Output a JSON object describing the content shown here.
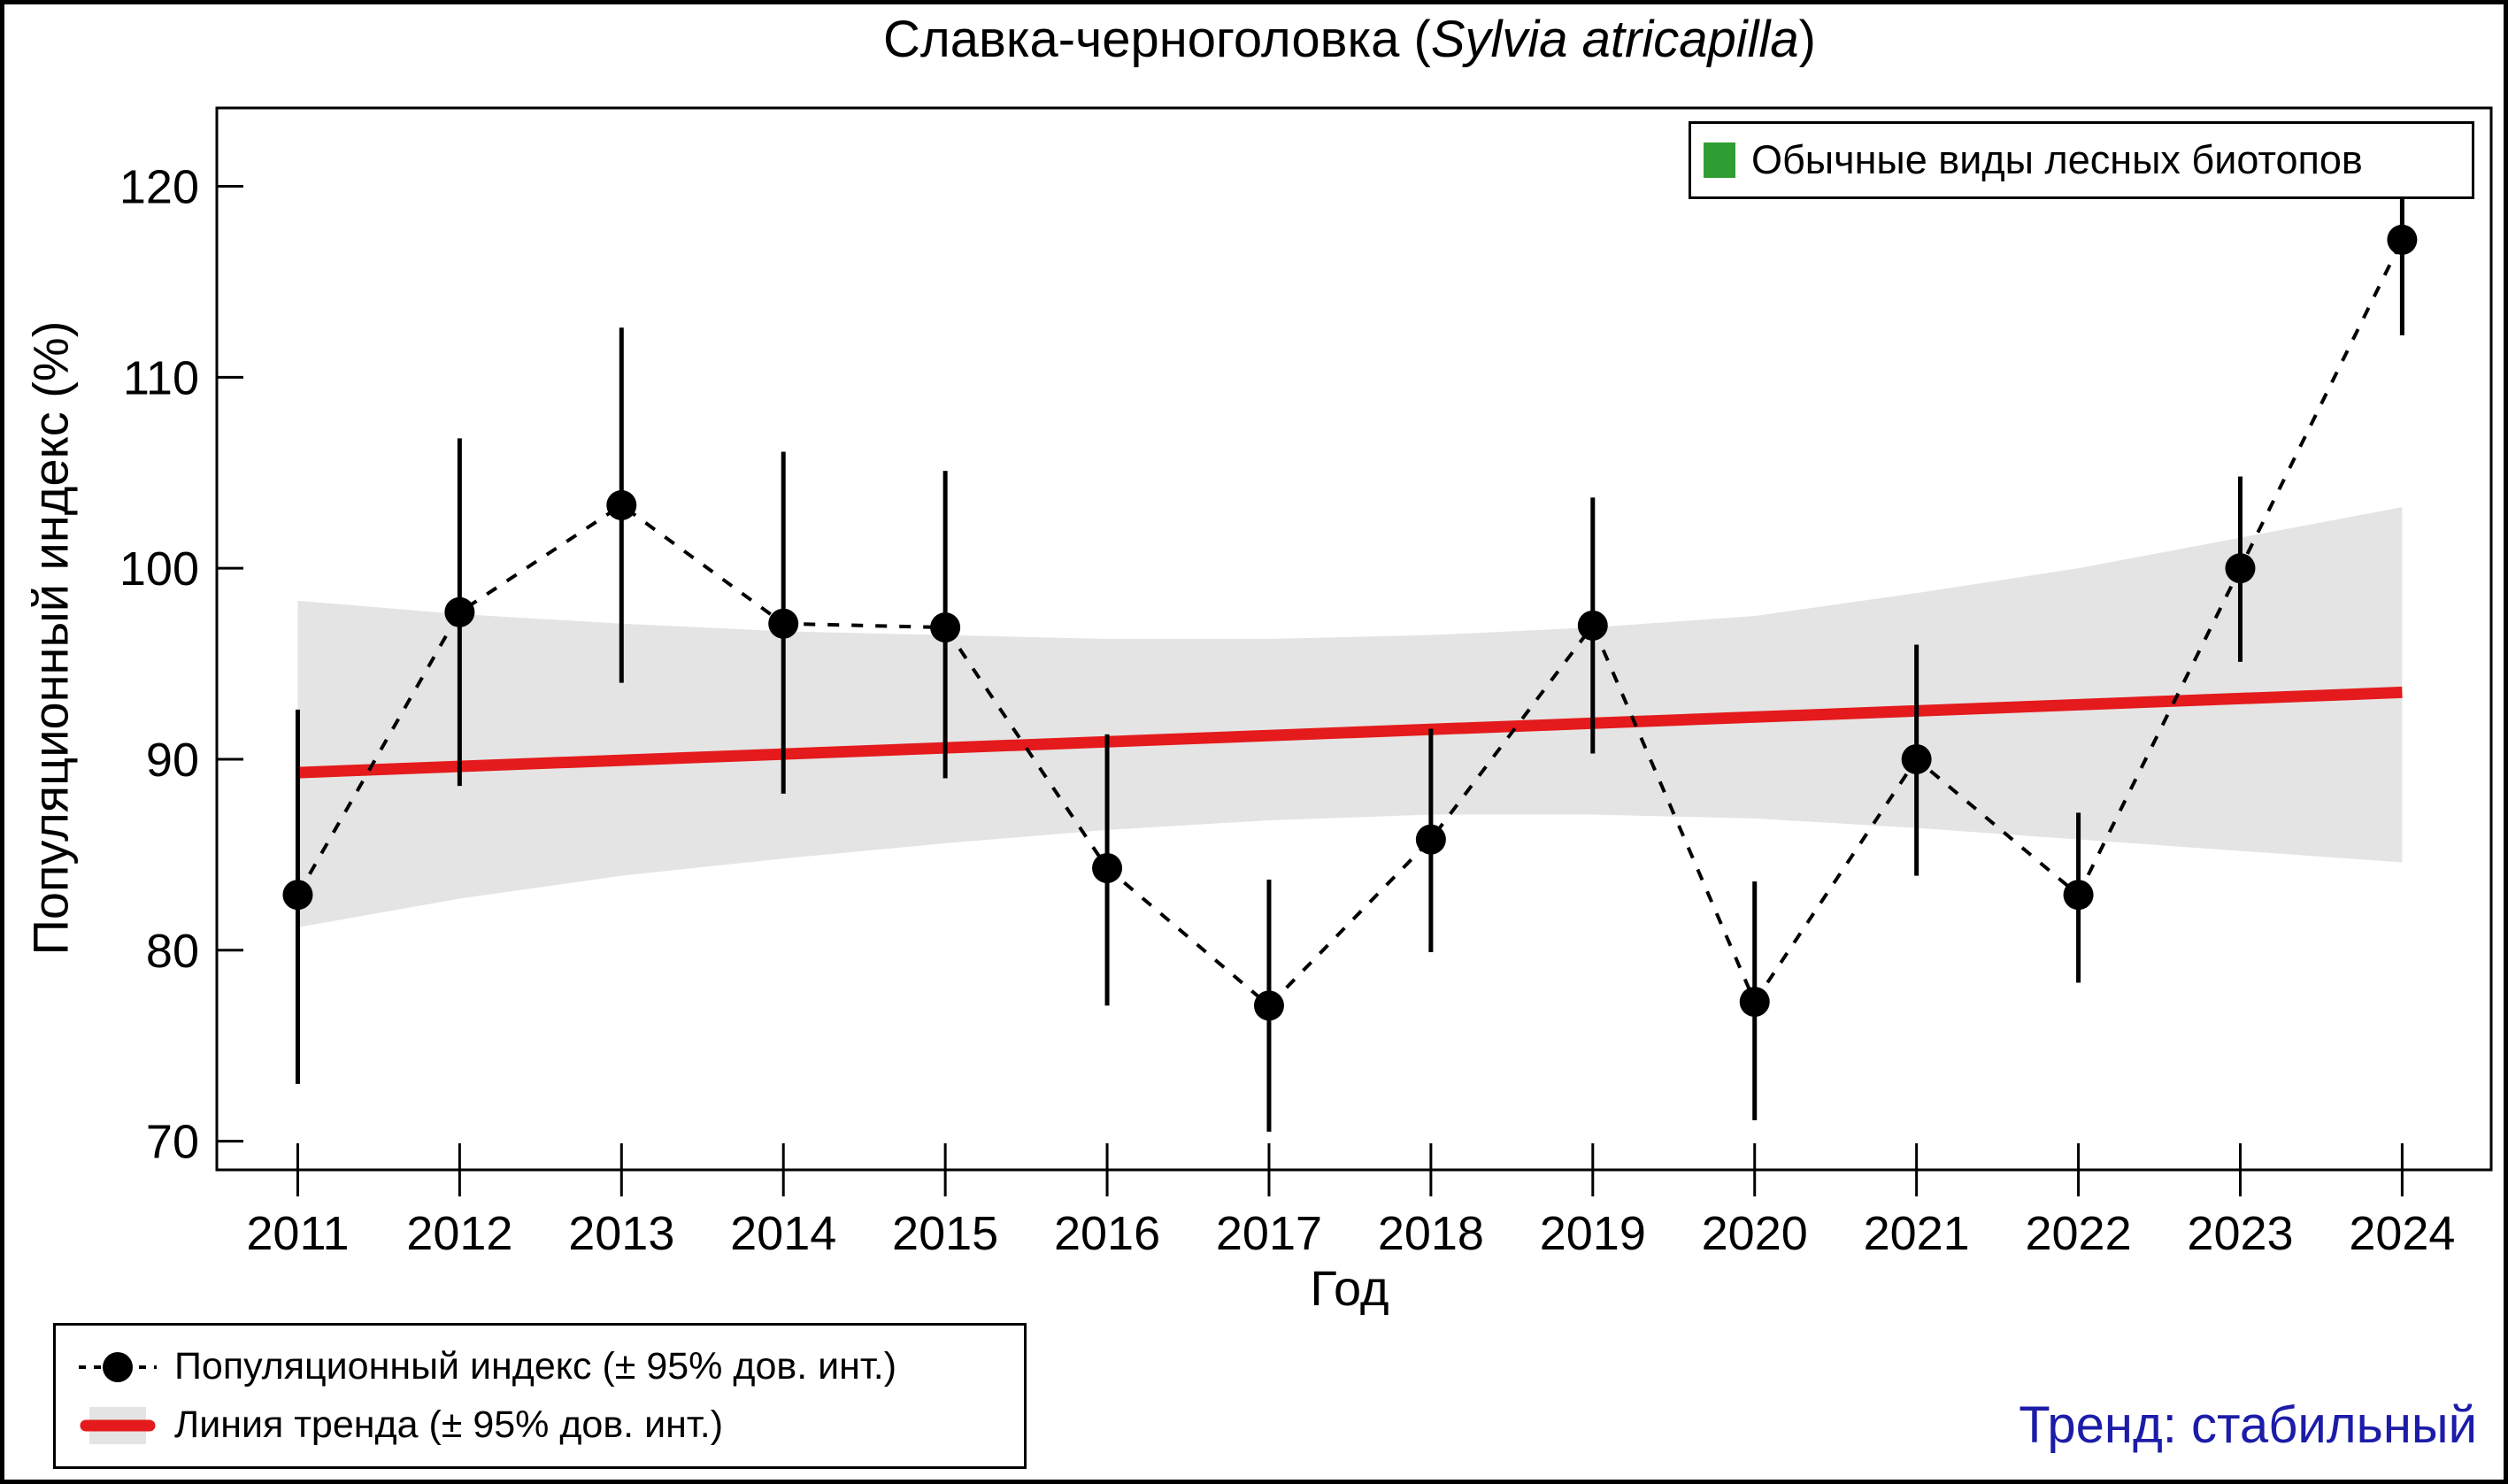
{
  "title": {
    "prefix": "Славка-черноголовка (",
    "species": "Sylvia atricapilla",
    "suffix": ")"
  },
  "axes": {
    "y_label": "Популяционный индекс (%)",
    "x_label": "Год",
    "y_ticks": [
      70,
      80,
      90,
      100,
      110,
      120
    ],
    "x_ticks": [
      2011,
      2012,
      2013,
      2014,
      2015,
      2016,
      2017,
      2018,
      2019,
      2020,
      2021,
      2022,
      2023,
      2024
    ]
  },
  "legend_top": {
    "label": "Обычные виды лесных биотопов",
    "swatch_color": "#2f9e32"
  },
  "legend_bottom": {
    "items": [
      {
        "label": "Популяционный индекс (± 95% дов. инт.)",
        "marker": "black-point-with-dotted-line"
      },
      {
        "label": "Линия тренда (± 95% дов. инт.)",
        "marker": "red-line-on-gray-band"
      }
    ]
  },
  "trend_note": {
    "text": "Тренд: стабильный",
    "color": "#1c1ca8"
  },
  "colors": {
    "point": "#000000",
    "trend_line": "#e41a1c",
    "confidence_band": "#e4e4e4",
    "legend_green": "#2f9e32",
    "frame": "#000000"
  },
  "chart_data": {
    "type": "line",
    "title": "Славка-черноголовка (Sylvia atricapilla)",
    "xlabel": "Год",
    "ylabel": "Популяционный индекс (%)",
    "ylim": [
      68.5,
      124.1
    ],
    "grid": false,
    "legend_position": "top-right",
    "x": [
      2011,
      2012,
      2013,
      2014,
      2015,
      2016,
      2017,
      2018,
      2019,
      2020,
      2021,
      2022,
      2023,
      2024
    ],
    "series": [
      {
        "name": "Популяционный индекс (± 95% дов. инт.)",
        "style": "black filled circles connected by dotted line, vertical 95% CI error bars",
        "values": [
          82.9,
          97.7,
          103.3,
          97.1,
          96.9,
          84.3,
          77.1,
          85.8,
          97.0,
          77.3,
          90.0,
          82.9,
          100.0,
          117.2
        ],
        "ci_low": [
          73.0,
          88.6,
          94.0,
          88.2,
          89.0,
          77.1,
          70.5,
          79.9,
          90.3,
          71.1,
          83.9,
          78.3,
          95.1,
          112.2
        ],
        "ci_high": [
          92.6,
          106.8,
          112.6,
          106.1,
          105.1,
          91.3,
          83.7,
          91.6,
          103.7,
          83.6,
          96.0,
          87.2,
          104.8,
          122.0
        ]
      },
      {
        "name": "Линия тренда (± 95% дов. инт.)",
        "style": "straight red trend line with gray 95% confidence band",
        "trend_endpoints": {
          "x": [
            2011,
            2024
          ],
          "y": [
            89.3,
            93.5
          ]
        },
        "band_top": [
          98.3,
          97.6,
          97.1,
          96.7,
          96.5,
          96.3,
          96.3,
          96.5,
          96.9,
          97.5,
          98.7,
          100.0,
          101.6,
          103.2
        ],
        "band_bottom": [
          81.2,
          82.7,
          83.9,
          84.8,
          85.6,
          86.3,
          86.8,
          87.1,
          87.1,
          86.9,
          86.4,
          85.8,
          85.2,
          84.6
        ]
      }
    ]
  }
}
